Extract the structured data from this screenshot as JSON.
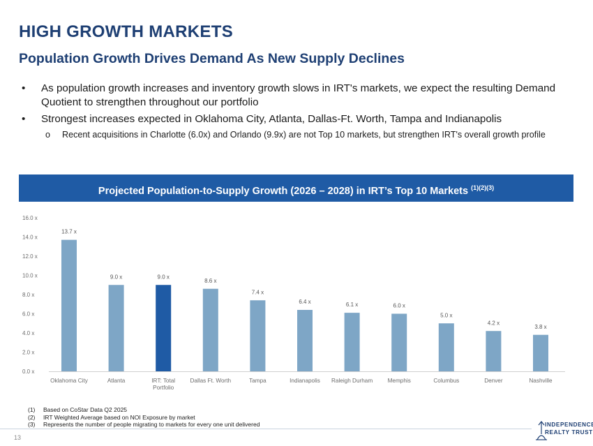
{
  "slide": {
    "title": "HIGH GROWTH MARKETS",
    "subtitle": "Population Growth Drives Demand As New Supply Declines",
    "bullets": [
      "As population growth increases and inventory growth slows in IRT's markets, we expect the resulting Demand Quotient to strengthen throughout our portfolio",
      "Strongest increases expected in Oklahoma City, Atlanta,  Dallas-Ft. Worth, Tampa and  Indianapolis"
    ],
    "sub_bullet": "Recent acquisitions in Charlotte (6.0x) and Orlando (9.9x) are not Top 10 markets, but strengthen IRT's overall growth profile",
    "bullet_marker": "•",
    "sub_bullet_marker": "o",
    "banner_title": "Projected Population-to-Supply Growth (2026 – 2028) in IRT’s Top 10 Markets",
    "banner_sup": "(1)(2)(3)",
    "footnotes": [
      {
        "num": "(1)",
        "text": "Based on CoStar Data Q2 2025"
      },
      {
        "num": "(2)",
        "text": "IRT Weighted Average based on NOI Exposure by market"
      },
      {
        "num": "(3)",
        "text": "Represents the number of people migrating to markets for every one unit delivered"
      }
    ],
    "page_number": "13",
    "logo_line1": "INDEPENDENCE",
    "logo_line2": "REALTY TRUST"
  },
  "colors": {
    "title": "#1e3f73",
    "banner": "#1f5ba5",
    "bar": "#7ea6c6",
    "bar_highlight": "#1f5ba5",
    "axis_text": "#6b6b6b"
  },
  "chart_data": {
    "type": "bar",
    "title": "Projected Population-to-Supply Growth (2026 – 2028) in IRT’s Top 10 Markets",
    "categories": [
      "Oklahoma City",
      "Atlanta",
      "IRT: Total Portfolio",
      "Dallas Ft. Worth",
      "Tampa",
      "Indianapolis",
      "Raleigh Durham",
      "Memphis",
      "Columbus",
      "Denver",
      "Nashville"
    ],
    "category_lines": [
      [
        "Oklahoma City"
      ],
      [
        "Atlanta"
      ],
      [
        "IRT: Total",
        "Portfolio"
      ],
      [
        "Dallas Ft. Worth"
      ],
      [
        "Tampa"
      ],
      [
        "Indianapolis"
      ],
      [
        "Raleigh Durham"
      ],
      [
        "Memphis"
      ],
      [
        "Columbus"
      ],
      [
        "Denver"
      ],
      [
        "Nashville"
      ]
    ],
    "values": [
      13.7,
      9.0,
      9.0,
      8.6,
      7.4,
      6.4,
      6.1,
      6.0,
      5.0,
      4.2,
      3.8
    ],
    "data_labels": [
      "13.7 x",
      "9.0 x",
      "9.0 x",
      "8.6 x",
      "7.4 x",
      "6.4 x",
      "6.1 x",
      "6.0 x",
      "5.0 x",
      "4.2 x",
      "3.8 x"
    ],
    "highlight_index": 2,
    "ylim": [
      0,
      16
    ],
    "yticks": [
      0,
      2,
      4,
      6,
      8,
      10,
      12,
      14,
      16
    ],
    "ytick_labels": [
      "0.0 x",
      "2.0 x",
      "4.0 x",
      "6.0 x",
      "8.0 x",
      "10.0 x",
      "12.0 x",
      "14.0 x",
      "16.0 x"
    ],
    "xlabel": "",
    "ylabel": "",
    "grid": false
  }
}
